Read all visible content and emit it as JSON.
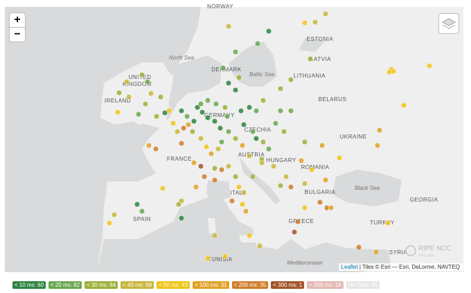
{
  "map": {
    "zoom": {
      "in": "+",
      "out": "−"
    },
    "labels": [
      "NORWAY",
      "ESTONIA",
      "LATVIA",
      "LITHUANIA",
      "BELARUS",
      "UKRAINE",
      "ROMANIA",
      "BULGARIA",
      "GREECE",
      "TURKEY",
      "SYRIA",
      "GEORGIA",
      "HUNGARY",
      "AUSTRIA",
      "CZECHIA",
      "GERMANY",
      "DENMARK",
      "UNITED",
      "KINGDOM",
      "IRELAND",
      "FRANCE",
      "SPAIN",
      "ITALY",
      "TUNISIA"
    ],
    "seas": [
      "North Sea",
      "Baltic Sea",
      "Black Sea",
      "Mediterranean"
    ],
    "attribution": {
      "link": "Leaflet",
      "text": "| Tiles © Esri — Esri, DeLorme, NAVTEQ"
    },
    "watermark": {
      "title": "RIPE NCC",
      "subtitle": "RIPE Atlas"
    }
  },
  "legend": [
    {
      "label": "< 10 ms: 60",
      "color": "#2e8540"
    },
    {
      "label": "< 20 ms: 82",
      "color": "#6aa84f"
    },
    {
      "label": "< 30 ms: 84",
      "color": "#9bb13a"
    },
    {
      "label": "< 40 ms: 68",
      "color": "#c8b63c"
    },
    {
      "label": "< 50 ms: 43",
      "color": "#f0c419"
    },
    {
      "label": "< 100 ms: 31",
      "color": "#e0a228"
    },
    {
      "label": "< 200 ms: 35",
      "color": "#cf7d2a"
    },
    {
      "label": "< 300 ms: 1",
      "color": "#a3542a"
    },
    {
      "label": "> 300 ms: 16",
      "color": "#e4b9b4"
    },
    {
      "label": "No Data: 64",
      "color": "#e6e6e6"
    }
  ]
}
